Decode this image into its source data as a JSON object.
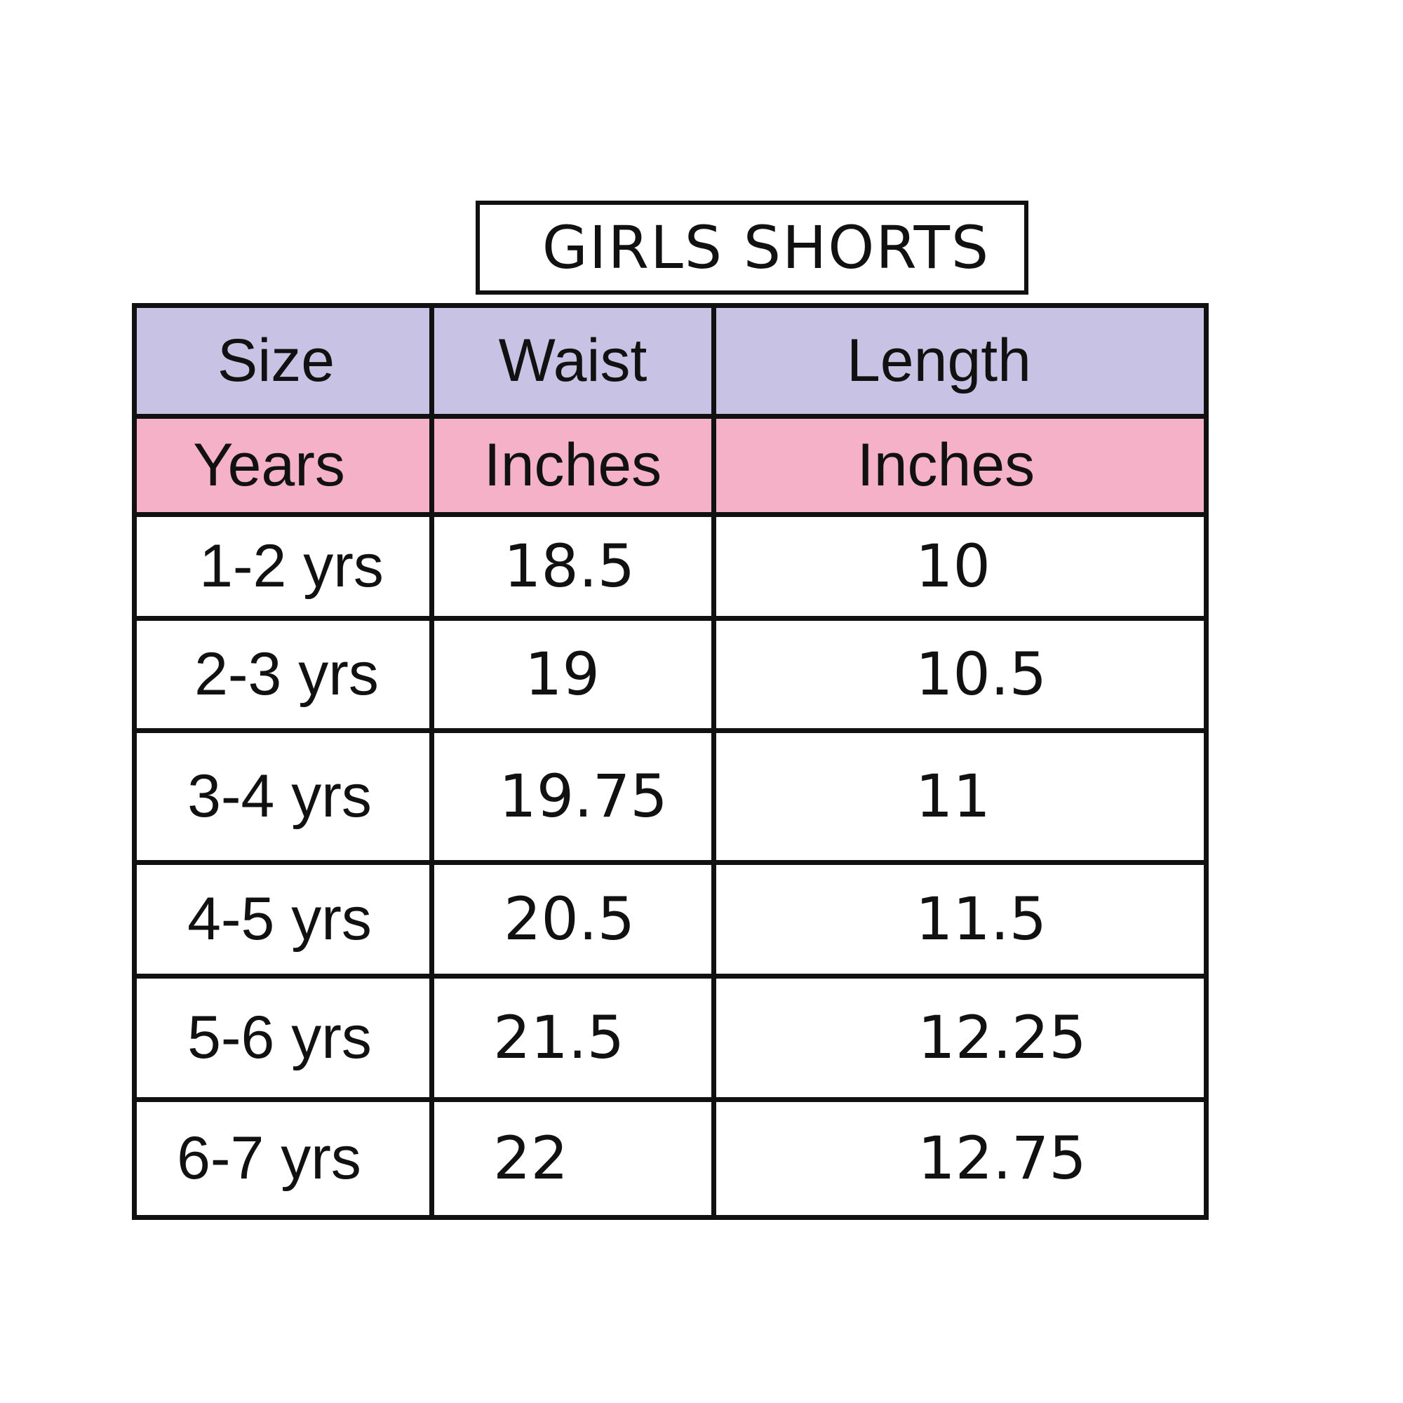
{
  "title": "GIRLS SHORTS",
  "header": {
    "size": "Size",
    "waist": "Waist",
    "length": "Length"
  },
  "units": {
    "size": "Years",
    "waist": "Inches",
    "length": "Inches"
  },
  "rows": [
    {
      "size": "1-2 yrs",
      "waist": "18.5",
      "length": "10"
    },
    {
      "size": "2-3 yrs",
      "waist": "19",
      "length": "10.5"
    },
    {
      "size": "3-4 yrs",
      "waist": "19.75",
      "length": "11"
    },
    {
      "size": "4-5 yrs",
      "waist": "20.5",
      "length": "11.5"
    },
    {
      "size": "5-6 yrs",
      "waist": "21.5",
      "length": "12.25"
    },
    {
      "size": "6-7 yrs",
      "waist": "22",
      "length": "12.75"
    }
  ],
  "colors": {
    "header_bg": "#c8c3e4",
    "unit_bg": "#f5b1c7",
    "border": "#111111"
  }
}
